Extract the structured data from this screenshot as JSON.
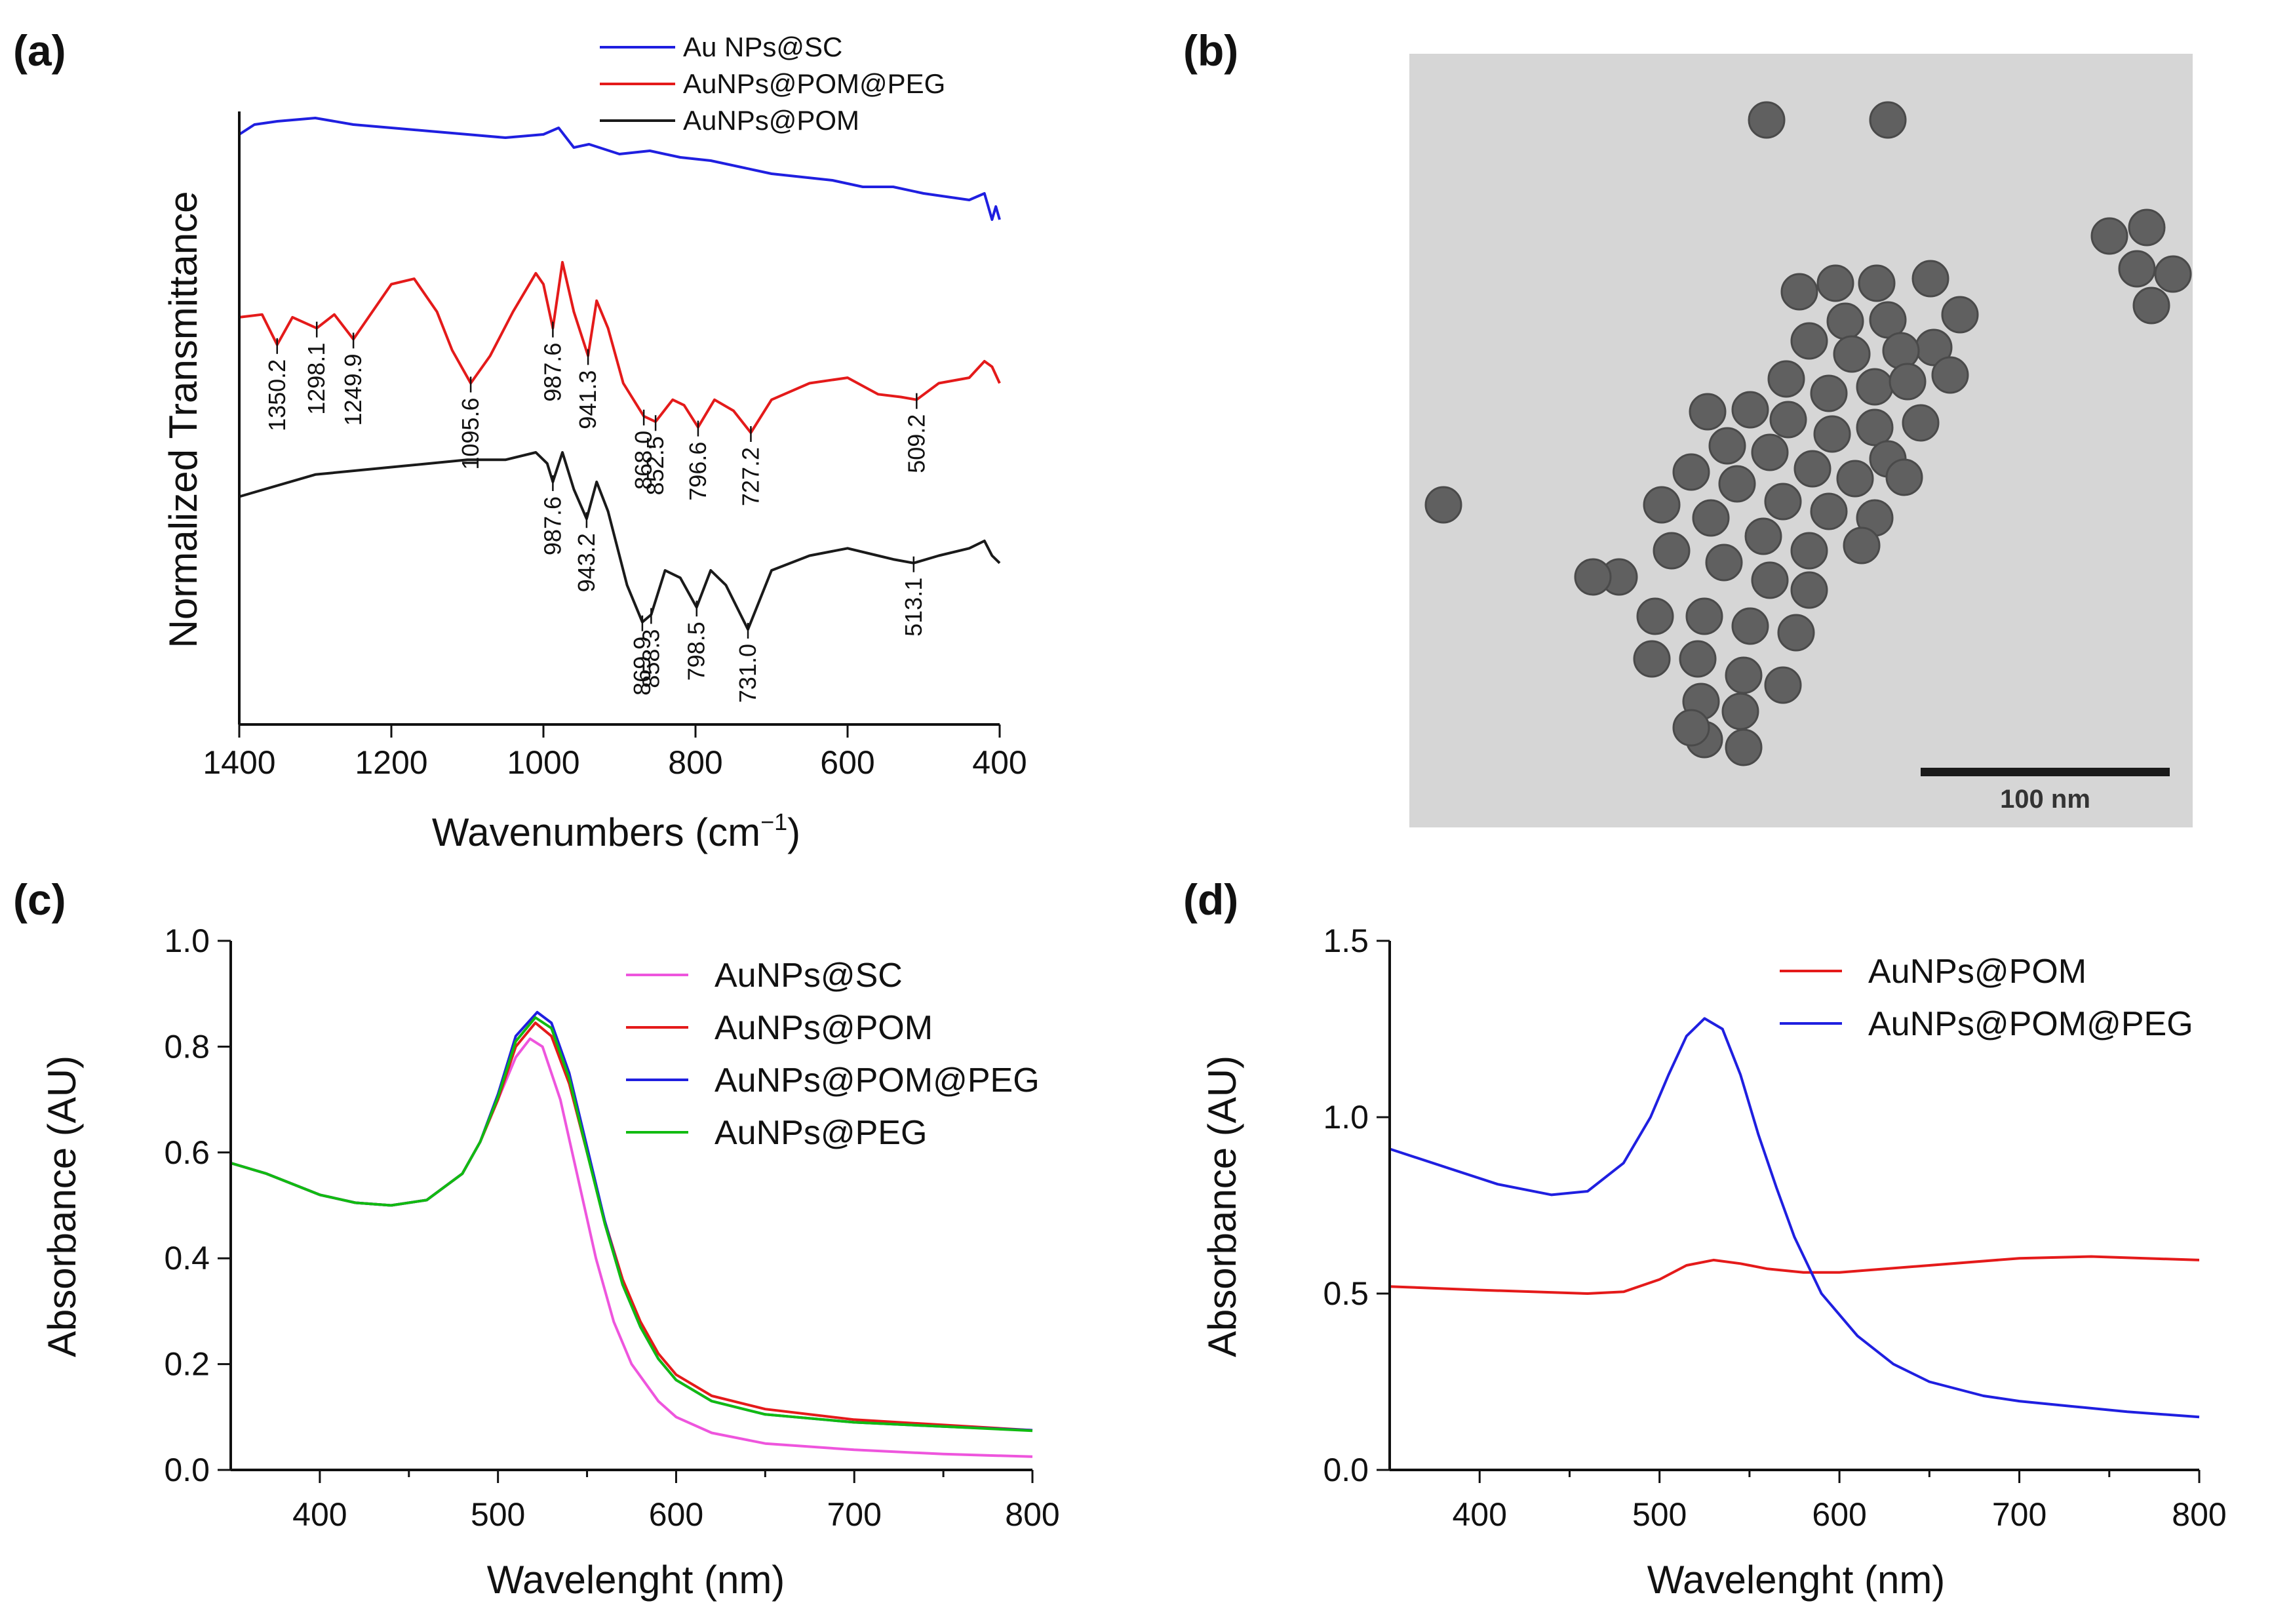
{
  "panel_labels": {
    "a": "(a)",
    "b": "(b)",
    "c": "(c)",
    "d": "(d)"
  },
  "colors": {
    "blue": "#1f1fe0",
    "red": "#e41a1a",
    "black": "#1a1a1a",
    "magenta": "#ee55dd",
    "green": "#11bb11"
  },
  "tem": {
    "scale_bar": "100 nm"
  },
  "chart_data": [
    {
      "id": "a",
      "type": "line",
      "title": "",
      "xlabel": "Wavenumbers (cm",
      "xlabel_sup": "−1",
      "xlabel_end": ")",
      "ylabel": "Normalized Transmittance",
      "xlim": [
        1400,
        400
      ],
      "xticks": [
        "1400",
        "1200",
        "1000",
        "800",
        "600",
        "400"
      ],
      "legend": [
        "Au NPs@SC",
        "AuNPs@POM@PEG",
        "AuNPs@POM"
      ],
      "series": [
        {
          "name": "Au NPs@SC",
          "color": "blue",
          "x": [
            1400,
            1380,
            1350,
            1300,
            1250,
            1200,
            1150,
            1100,
            1050,
            1000,
            980,
            960,
            940,
            900,
            860,
            820,
            780,
            740,
            700,
            660,
            620,
            580,
            540,
            500,
            470,
            440,
            420,
            410,
            405,
            400
          ],
          "y": [
            0.95,
            0.965,
            0.97,
            0.975,
            0.965,
            0.96,
            0.955,
            0.95,
            0.945,
            0.95,
            0.96,
            0.93,
            0.935,
            0.92,
            0.925,
            0.915,
            0.91,
            0.9,
            0.89,
            0.885,
            0.88,
            0.87,
            0.87,
            0.86,
            0.855,
            0.85,
            0.86,
            0.82,
            0.84,
            0.82
          ]
        },
        {
          "name": "AuNPs@POM@PEG",
          "color": "red",
          "x": [
            1400,
            1370,
            1350.2,
            1330,
            1298.1,
            1275,
            1249.9,
            1230,
            1200,
            1170,
            1140,
            1120,
            1095.6,
            1070,
            1040,
            1010,
            1000,
            987.6,
            975,
            960,
            941.3,
            930,
            915,
            895,
            868.0,
            852.5,
            830,
            815,
            796.6,
            775,
            750,
            727.2,
            700,
            650,
            600,
            560,
            530,
            509.2,
            480,
            440,
            420,
            410,
            400
          ],
          "y": [
            0.62,
            0.625,
            0.57,
            0.62,
            0.6,
            0.625,
            0.58,
            0.62,
            0.68,
            0.69,
            0.63,
            0.56,
            0.5,
            0.55,
            0.63,
            0.7,
            0.68,
            0.6,
            0.72,
            0.63,
            0.55,
            0.65,
            0.6,
            0.5,
            0.44,
            0.43,
            0.47,
            0.46,
            0.42,
            0.47,
            0.45,
            0.41,
            0.47,
            0.5,
            0.51,
            0.48,
            0.475,
            0.47,
            0.5,
            0.51,
            0.54,
            0.53,
            0.5
          ]
        },
        {
          "name": "AuNPs@POM",
          "color": "black",
          "x": [
            1400,
            1300,
            1200,
            1100,
            1050,
            1010,
            995,
            987.6,
            975,
            960,
            943.2,
            930,
            915,
            890,
            869.9,
            858.3,
            840,
            820,
            798.5,
            780,
            760,
            731.0,
            700,
            650,
            600,
            560,
            540,
            513.1,
            480,
            440,
            420,
            410,
            400
          ],
          "y": [
            0.32,
            0.35,
            0.36,
            0.37,
            0.37,
            0.38,
            0.365,
            0.34,
            0.38,
            0.33,
            0.29,
            0.34,
            0.3,
            0.2,
            0.15,
            0.16,
            0.22,
            0.21,
            0.17,
            0.22,
            0.2,
            0.14,
            0.22,
            0.24,
            0.25,
            0.24,
            0.235,
            0.23,
            0.24,
            0.25,
            0.26,
            0.24,
            0.23
          ]
        }
      ],
      "annotations": [
        {
          "series": "AuNPs@POM@PEG",
          "label": "1350.2",
          "x": 1350.2
        },
        {
          "series": "AuNPs@POM@PEG",
          "label": "1298.1",
          "x": 1298.1
        },
        {
          "series": "AuNPs@POM@PEG",
          "label": "1249.9",
          "x": 1249.9
        },
        {
          "series": "AuNPs@POM@PEG",
          "label": "1095.6",
          "x": 1095.6
        },
        {
          "series": "AuNPs@POM@PEG",
          "label": "987.6",
          "x": 987.6
        },
        {
          "series": "AuNPs@POM@PEG",
          "label": "941.3",
          "x": 941.3
        },
        {
          "series": "AuNPs@POM@PEG",
          "label": "868.0",
          "x": 868.0
        },
        {
          "series": "AuNPs@POM@PEG",
          "label": "852.5",
          "x": 852.5
        },
        {
          "series": "AuNPs@POM@PEG",
          "label": "796.6",
          "x": 796.6
        },
        {
          "series": "AuNPs@POM@PEG",
          "label": "727.2",
          "x": 727.2
        },
        {
          "series": "AuNPs@POM@PEG",
          "label": "509.2",
          "x": 509.2
        },
        {
          "series": "AuNPs@POM",
          "label": "987.6",
          "x": 987.6
        },
        {
          "series": "AuNPs@POM",
          "label": "943.2",
          "x": 943.2
        },
        {
          "series": "AuNPs@POM",
          "label": "869.9",
          "x": 869.9
        },
        {
          "series": "AuNPs@POM",
          "label": "858.3",
          "x": 858.3
        },
        {
          "series": "AuNPs@POM",
          "label": "798.5",
          "x": 798.5
        },
        {
          "series": "AuNPs@POM",
          "label": "731.0",
          "x": 731.0
        },
        {
          "series": "AuNPs@POM",
          "label": "513.1",
          "x": 513.1
        }
      ]
    },
    {
      "id": "c",
      "type": "line",
      "title": "",
      "xlabel": "Wavelenght (nm)",
      "ylabel": "Absorbance (AU)",
      "xlim": [
        350,
        800
      ],
      "ylim": [
        0.0,
        1.0
      ],
      "xticks": [
        "400",
        "500",
        "600",
        "700",
        "800"
      ],
      "yticks": [
        "0.0",
        "0.2",
        "0.4",
        "0.6",
        "0.8",
        "1.0"
      ],
      "legend": [
        "AuNPs@SC",
        "AuNPs@POM",
        "AuNPs@POM@PEG",
        "AuNPs@PEG"
      ],
      "series": [
        {
          "name": "AuNPs@SC",
          "color": "magenta",
          "x": [
            350,
            370,
            400,
            420,
            440,
            460,
            480,
            490,
            500,
            510,
            518,
            525,
            535,
            545,
            555,
            565,
            575,
            590,
            600,
            620,
            650,
            700,
            750,
            800
          ],
          "y": [
            0.58,
            0.56,
            0.52,
            0.505,
            0.5,
            0.51,
            0.56,
            0.62,
            0.7,
            0.78,
            0.815,
            0.8,
            0.7,
            0.55,
            0.4,
            0.28,
            0.2,
            0.13,
            0.1,
            0.07,
            0.05,
            0.038,
            0.03,
            0.025
          ]
        },
        {
          "name": "AuNPs@POM",
          "color": "red",
          "x": [
            350,
            370,
            400,
            420,
            440,
            460,
            480,
            490,
            500,
            510,
            521,
            530,
            540,
            550,
            560,
            570,
            580,
            590,
            600,
            620,
            650,
            700,
            750,
            800
          ],
          "y": [
            0.58,
            0.56,
            0.52,
            0.505,
            0.5,
            0.51,
            0.56,
            0.62,
            0.7,
            0.8,
            0.845,
            0.82,
            0.73,
            0.6,
            0.47,
            0.36,
            0.28,
            0.22,
            0.18,
            0.14,
            0.115,
            0.095,
            0.085,
            0.075
          ]
        },
        {
          "name": "AuNPs@POM@PEG",
          "color": "blue",
          "x": [
            350,
            370,
            400,
            420,
            440,
            460,
            480,
            490,
            500,
            510,
            522,
            530,
            540,
            550,
            560,
            570,
            580,
            590,
            600,
            620,
            650,
            700,
            750,
            800
          ],
          "y": [
            0.58,
            0.56,
            0.52,
            0.505,
            0.5,
            0.51,
            0.56,
            0.62,
            0.71,
            0.82,
            0.865,
            0.845,
            0.75,
            0.61,
            0.47,
            0.35,
            0.27,
            0.21,
            0.17,
            0.13,
            0.105,
            0.09,
            0.082,
            0.075
          ]
        },
        {
          "name": "AuNPs@PEG",
          "color": "green",
          "x": [
            350,
            370,
            400,
            420,
            440,
            460,
            480,
            490,
            500,
            510,
            521,
            530,
            540,
            550,
            560,
            570,
            580,
            590,
            600,
            620,
            650,
            700,
            750,
            800
          ],
          "y": [
            0.58,
            0.56,
            0.52,
            0.505,
            0.5,
            0.51,
            0.56,
            0.62,
            0.705,
            0.81,
            0.855,
            0.835,
            0.74,
            0.6,
            0.465,
            0.35,
            0.27,
            0.21,
            0.17,
            0.13,
            0.105,
            0.09,
            0.082,
            0.074
          ]
        }
      ]
    },
    {
      "id": "d",
      "type": "line",
      "title": "",
      "xlabel": "Wavelenght (nm)",
      "ylabel": "Absorbance (AU)",
      "xlim": [
        350,
        800
      ],
      "ylim": [
        0.0,
        1.5
      ],
      "xticks": [
        "400",
        "500",
        "600",
        "700",
        "800"
      ],
      "yticks": [
        "0.0",
        "0.5",
        "1.0",
        "1.5"
      ],
      "legend": [
        "AuNPs@POM",
        "AuNPs@POM@PEG"
      ],
      "series": [
        {
          "name": "AuNPs@POM",
          "color": "red",
          "x": [
            350,
            400,
            460,
            480,
            500,
            515,
            530,
            545,
            560,
            580,
            600,
            650,
            700,
            740,
            770,
            800
          ],
          "y": [
            0.52,
            0.51,
            0.5,
            0.505,
            0.54,
            0.58,
            0.595,
            0.585,
            0.57,
            0.56,
            0.56,
            0.58,
            0.6,
            0.605,
            0.6,
            0.595
          ]
        },
        {
          "name": "AuNPs@POM@PEG",
          "color": "blue",
          "x": [
            350,
            380,
            410,
            440,
            460,
            480,
            495,
            505,
            515,
            525,
            535,
            545,
            555,
            565,
            575,
            590,
            610,
            630,
            650,
            680,
            700,
            730,
            760,
            800
          ],
          "y": [
            0.91,
            0.86,
            0.81,
            0.78,
            0.79,
            0.87,
            1.0,
            1.12,
            1.23,
            1.28,
            1.25,
            1.12,
            0.95,
            0.8,
            0.66,
            0.5,
            0.38,
            0.3,
            0.25,
            0.21,
            0.195,
            0.18,
            0.165,
            0.15
          ]
        }
      ]
    }
  ]
}
